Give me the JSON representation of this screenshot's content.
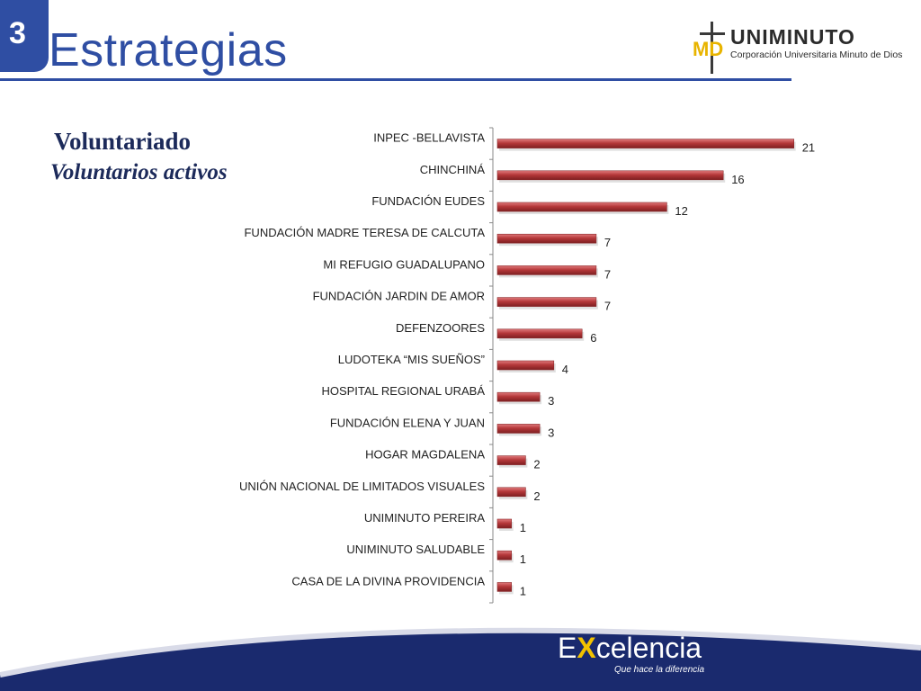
{
  "header": {
    "section_number": "3",
    "title": "Estrategias"
  },
  "logo": {
    "initials": "MD",
    "name": "UNIMINUTO",
    "subtitle": "Corporación Universitaria Minuto de Dios"
  },
  "subtitle": "Voluntariado",
  "subtitle2": "Voluntarios activos",
  "footer": {
    "logo_e": "E",
    "logo_x": "X",
    "logo_rest": "celencia",
    "tagline": "Que hace la diferencia"
  },
  "colors": {
    "accent_blue": "#2f4ea3",
    "bar_red": "#b5383a",
    "footer_navy": "#1a2a6e"
  },
  "chart_data": {
    "type": "bar",
    "orientation": "horizontal",
    "title": "",
    "xlabel": "",
    "ylabel": "",
    "categories": [
      "INPEC -BELLAVISTA",
      "CHINCHINÁ",
      "FUNDACIÓN EUDES",
      "FUNDACIÓN MADRE TERESA DE CALCUTA",
      "MI REFUGIO GUADALUPANO",
      "FUNDACIÓN JARDIN DE AMOR",
      "DEFENZOORES",
      "LUDOTEKA “MIS SUEÑOS”",
      "HOSPITAL REGIONAL URABÁ",
      "FUNDACIÓN ELENA Y JUAN",
      "HOGAR MAGDALENA",
      "UNIÓN NACIONAL DE LIMITADOS VISUALES",
      "UNIMINUTO PEREIRA",
      "UNIMINUTO SALUDABLE",
      "CASA DE LA DIVINA PROVIDENCIA"
    ],
    "values": [
      21,
      16,
      12,
      7,
      7,
      7,
      6,
      4,
      3,
      3,
      2,
      2,
      1,
      1,
      1
    ],
    "xlim": [
      0,
      21
    ],
    "grid": false,
    "data_labels": true
  }
}
